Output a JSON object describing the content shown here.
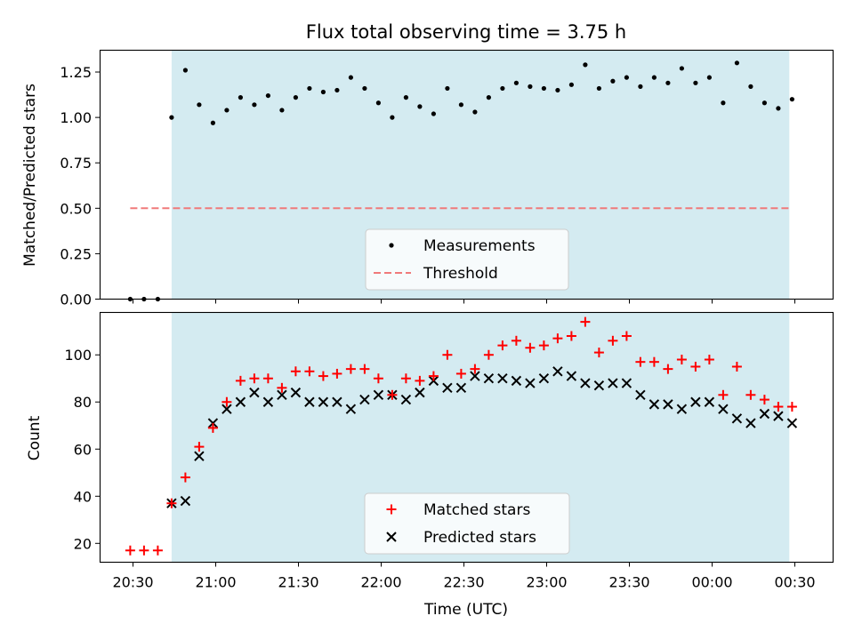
{
  "title": "Flux total observing time = 3.75 h",
  "xlabel": "Time (UTC)",
  "colors": {
    "shade": "#d4ebf1",
    "measurement": "#000000",
    "threshold": "#f07a7a",
    "matched": "#ff0000",
    "predicted": "#000000"
  },
  "chart_data": [
    {
      "type": "scatter",
      "ylabel": "Matched/Predicted stars",
      "ylim": [
        0,
        1.37
      ],
      "yticks": [
        "0.00",
        "0.25",
        "0.50",
        "0.75",
        "1.00",
        "1.25"
      ],
      "shaded_region": [
        "20:44",
        "00:28"
      ],
      "legend": {
        "placement": "lower-center",
        "entries": [
          "Measurements",
          "Threshold"
        ]
      },
      "series": [
        {
          "name": "Measurements",
          "x": [
            "20:29",
            "20:34",
            "20:39",
            "20:44",
            "20:49",
            "20:54",
            "20:59",
            "21:04",
            "21:09",
            "21:14",
            "21:19",
            "21:24",
            "21:29",
            "21:34",
            "21:39",
            "21:44",
            "21:49",
            "21:54",
            "21:59",
            "22:04",
            "22:09",
            "22:14",
            "22:19",
            "22:24",
            "22:29",
            "22:34",
            "22:39",
            "22:44",
            "22:49",
            "22:54",
            "22:59",
            "23:04",
            "23:09",
            "23:14",
            "23:19",
            "23:24",
            "23:29",
            "23:34",
            "23:39",
            "23:44",
            "23:49",
            "23:54",
            "23:59",
            "00:04",
            "00:09",
            "00:14",
            "00:19",
            "00:24",
            "00:29"
          ],
          "y": [
            0.0,
            0.0,
            0.0,
            1.0,
            1.26,
            1.07,
            0.97,
            1.04,
            1.11,
            1.07,
            1.12,
            1.04,
            1.11,
            1.16,
            1.14,
            1.15,
            1.22,
            1.16,
            1.08,
            1.0,
            1.11,
            1.06,
            1.02,
            1.16,
            1.07,
            1.03,
            1.11,
            1.16,
            1.19,
            1.17,
            1.16,
            1.15,
            1.18,
            1.29,
            1.16,
            1.2,
            1.22,
            1.17,
            1.22,
            1.19,
            1.27,
            1.19,
            1.22,
            1.08,
            1.3,
            1.17,
            1.08,
            1.05,
            1.1
          ]
        },
        {
          "name": "Threshold",
          "x": [
            "20:29",
            "00:29"
          ],
          "y": [
            0.5,
            0.5
          ]
        }
      ]
    },
    {
      "type": "scatter",
      "ylabel": "Count",
      "ylim": [
        12,
        118
      ],
      "yticks": [
        "20",
        "40",
        "60",
        "80",
        "100"
      ],
      "xticks": [
        "20:30",
        "21:00",
        "21:30",
        "22:00",
        "22:30",
        "23:00",
        "23:30",
        "00:00",
        "00:30"
      ],
      "shaded_region": [
        "20:44",
        "00:28"
      ],
      "legend": {
        "placement": "lower-center",
        "entries": [
          "Matched stars",
          "Predicted stars"
        ]
      },
      "series": [
        {
          "name": "Matched stars",
          "x": [
            "20:29",
            "20:34",
            "20:39",
            "20:44",
            "20:49",
            "20:54",
            "20:59",
            "21:04",
            "21:09",
            "21:14",
            "21:19",
            "21:24",
            "21:29",
            "21:34",
            "21:39",
            "21:44",
            "21:49",
            "21:54",
            "21:59",
            "22:04",
            "22:09",
            "22:14",
            "22:19",
            "22:24",
            "22:29",
            "22:34",
            "22:39",
            "22:44",
            "22:49",
            "22:54",
            "22:59",
            "23:04",
            "23:09",
            "23:14",
            "23:19",
            "23:24",
            "23:29",
            "23:34",
            "23:39",
            "23:44",
            "23:49",
            "23:54",
            "23:59",
            "00:04",
            "00:09",
            "00:14",
            "00:19",
            "00:24",
            "00:29"
          ],
          "y": [
            17,
            17,
            17,
            37,
            48,
            61,
            69,
            80,
            89,
            90,
            90,
            86,
            93,
            93,
            91,
            92,
            94,
            94,
            90,
            83,
            90,
            89,
            91,
            100,
            92,
            94,
            100,
            104,
            106,
            103,
            104,
            107,
            108,
            114,
            101,
            106,
            108,
            97,
            97,
            94,
            98,
            95,
            98,
            83,
            95,
            83,
            81,
            78,
            78
          ]
        },
        {
          "name": "Predicted stars",
          "x": [
            "20:44",
            "20:49",
            "20:54",
            "20:59",
            "21:04",
            "21:09",
            "21:14",
            "21:19",
            "21:24",
            "21:29",
            "21:34",
            "21:39",
            "21:44",
            "21:49",
            "21:54",
            "21:59",
            "22:04",
            "22:09",
            "22:14",
            "22:19",
            "22:24",
            "22:29",
            "22:34",
            "22:39",
            "22:44",
            "22:49",
            "22:54",
            "22:59",
            "23:04",
            "23:09",
            "23:14",
            "23:19",
            "23:24",
            "23:29",
            "23:34",
            "23:39",
            "23:44",
            "23:49",
            "23:54",
            "23:59",
            "00:04",
            "00:09",
            "00:14",
            "00:19",
            "00:24",
            "00:29"
          ],
          "y": [
            37,
            38,
            57,
            71,
            77,
            80,
            84,
            80,
            83,
            84,
            80,
            80,
            80,
            77,
            81,
            83,
            83,
            81,
            84,
            89,
            86,
            86,
            91,
            90,
            90,
            89,
            88,
            90,
            93,
            91,
            88,
            87,
            88,
            88,
            83,
            79,
            79,
            77,
            80,
            80,
            77,
            73,
            71,
            75,
            74,
            71
          ]
        }
      ]
    }
  ]
}
